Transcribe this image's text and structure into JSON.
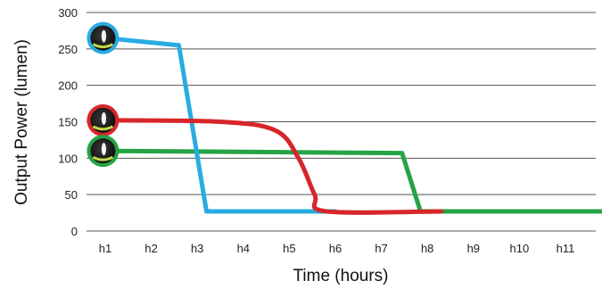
{
  "chart_data": {
    "type": "line",
    "xlabel": "Time (hours)",
    "ylabel": "Output Power (lumen)",
    "categories": [
      "h1",
      "h2",
      "h3",
      "h4",
      "h5",
      "h6",
      "h7",
      "h8",
      "h9",
      "h10",
      "h11"
    ],
    "ylim": [
      0,
      300
    ],
    "yticks": [
      0,
      50,
      100,
      150,
      200,
      250,
      300
    ],
    "grid": "horizontal",
    "series": [
      {
        "color": "#29ABE2",
        "x": [
          1,
          2.6,
          3.2,
          6.0
        ],
        "y": [
          265,
          255,
          27,
          27
        ]
      },
      {
        "color": "#D7262B",
        "x": [
          1,
          3.5,
          4.7,
          5.2,
          5.55,
          5.8,
          8.3
        ],
        "y": [
          152,
          150,
          138,
          100,
          50,
          27,
          27
        ]
      },
      {
        "color": "#26A345",
        "x": [
          1,
          7.45,
          7.85,
          11.85
        ],
        "y": [
          110,
          107,
          27,
          27
        ]
      }
    ],
    "markers": [
      {
        "color": "#29ABE2",
        "x": 0.95,
        "y": 265,
        "icon": "flashlight-icon"
      },
      {
        "color": "#D7262B",
        "x": 0.95,
        "y": 152,
        "icon": "flashlight-icon"
      },
      {
        "color": "#26A345",
        "x": 0.95,
        "y": 110,
        "icon": "flashlight-icon"
      }
    ]
  }
}
